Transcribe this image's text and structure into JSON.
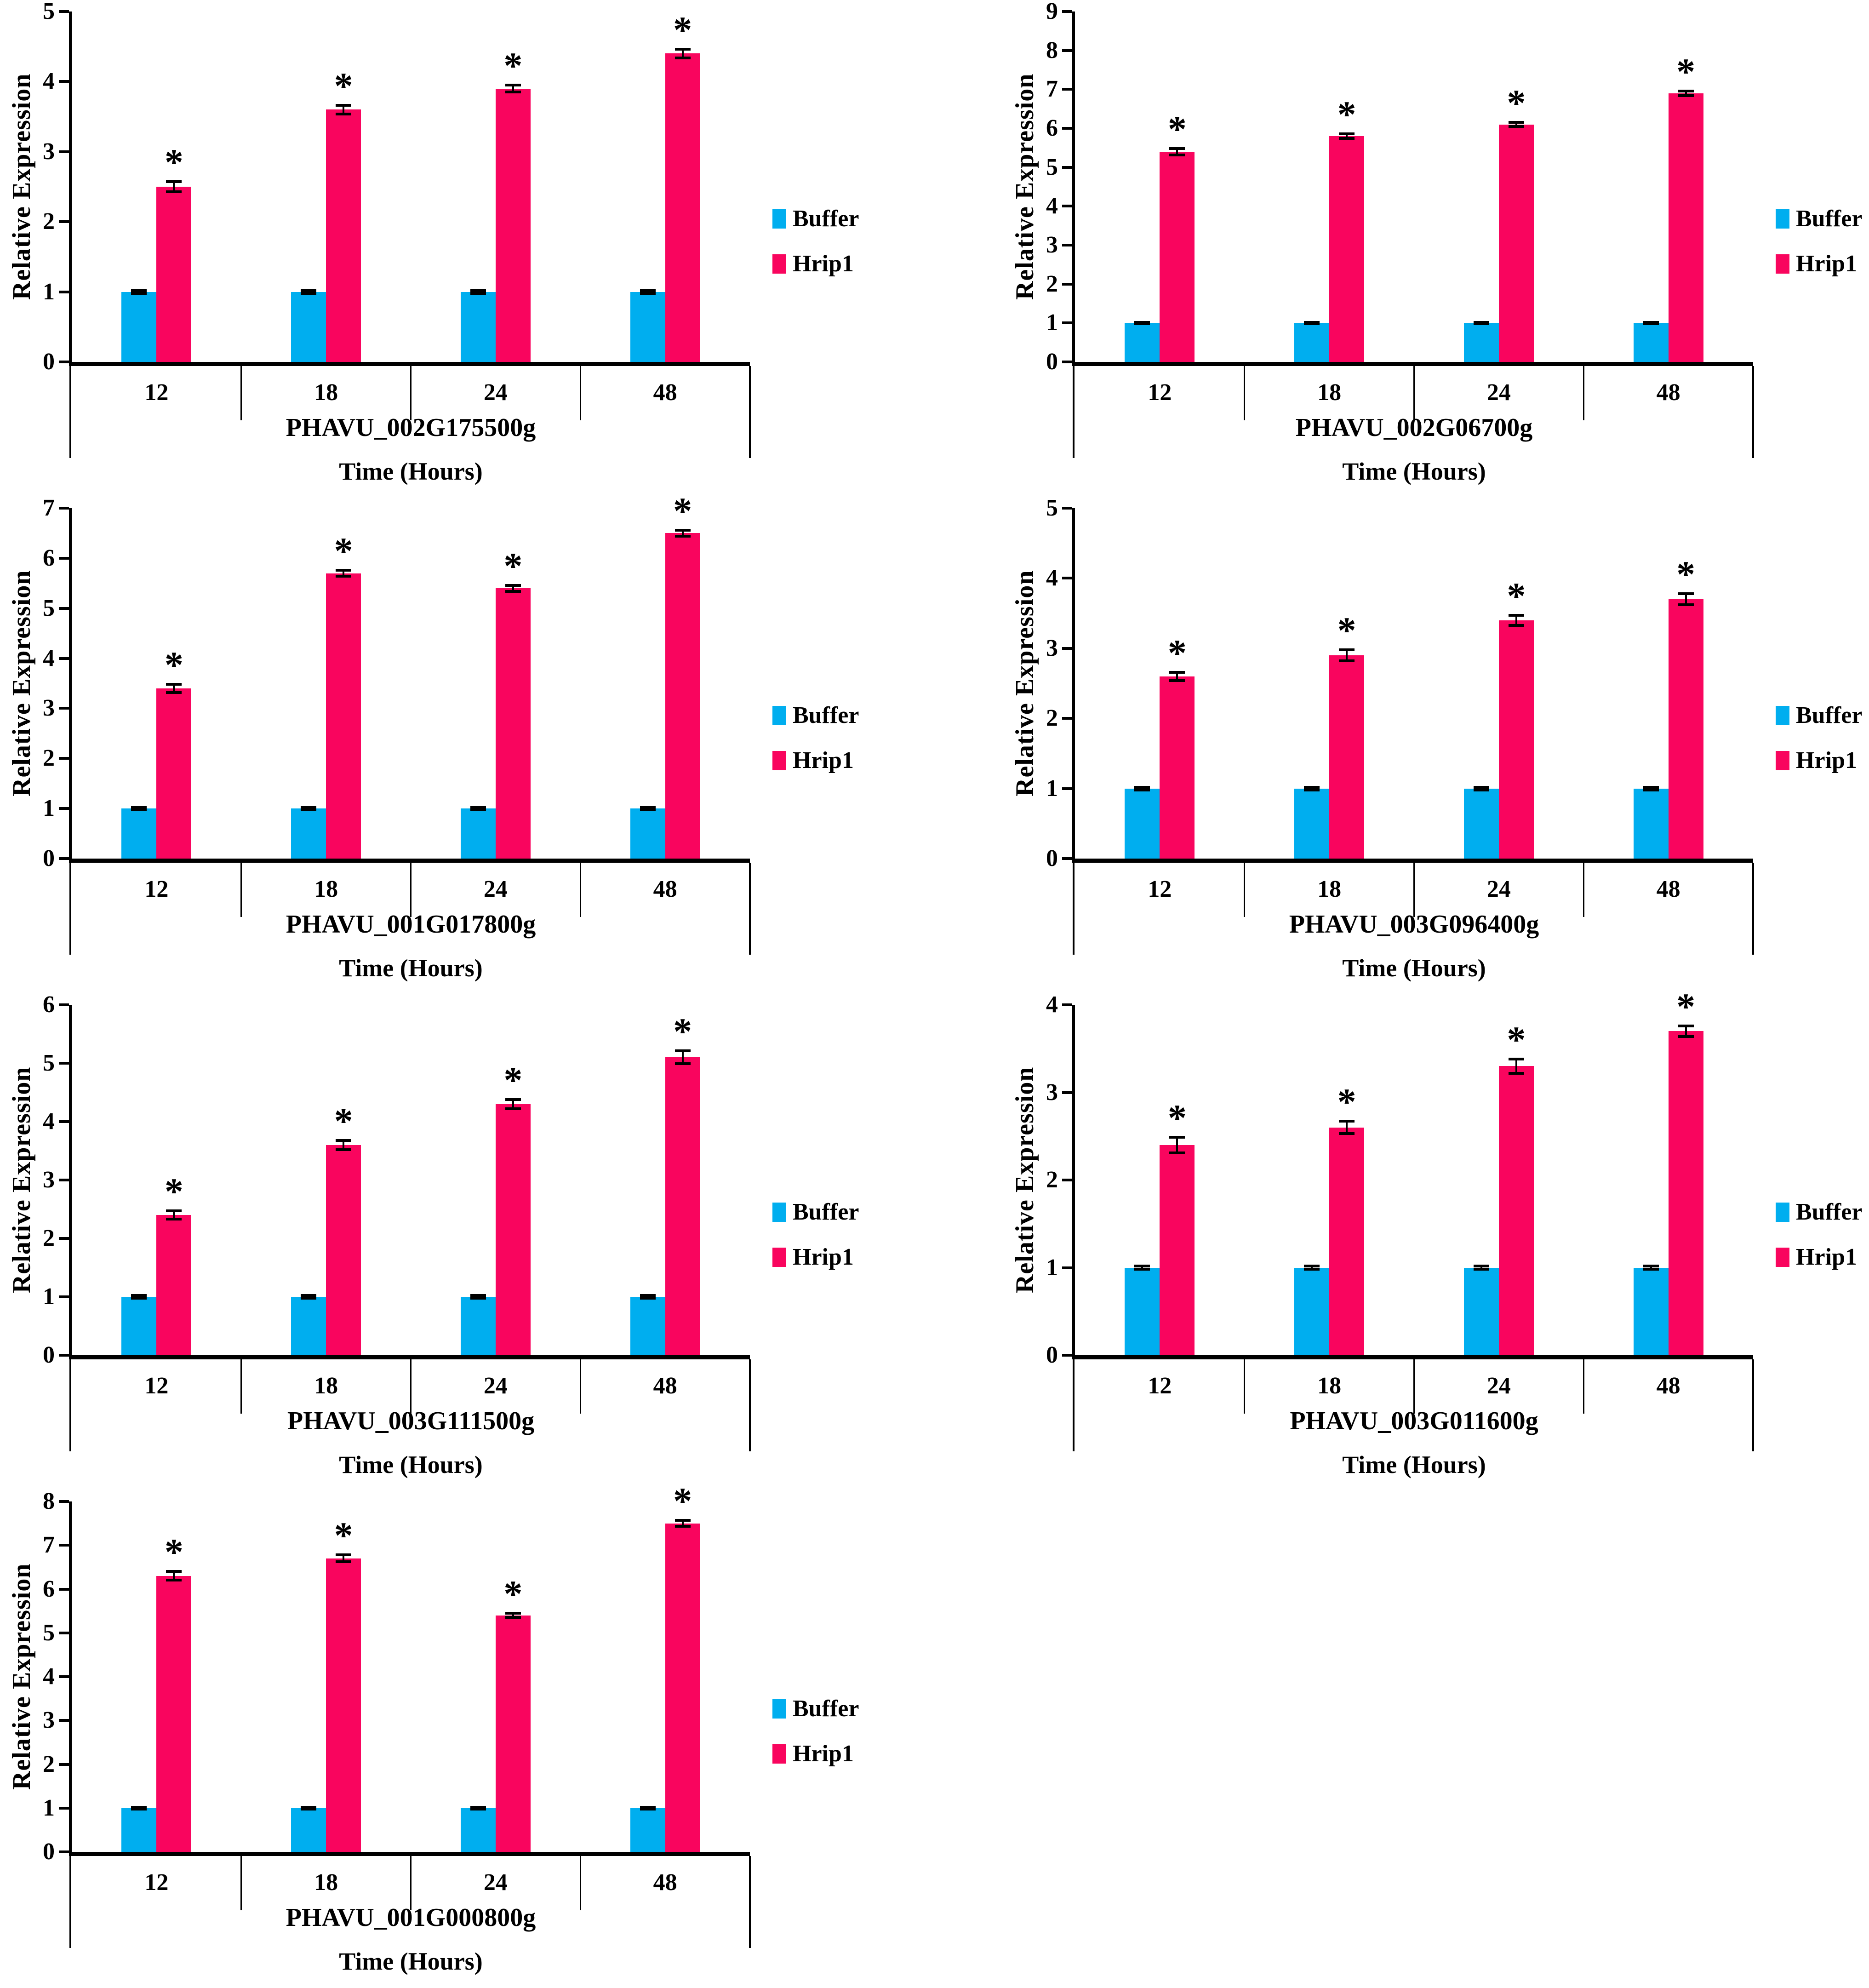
{
  "legend": {
    "buffer_label": "Buffer",
    "hrip1_label": "Hrip1"
  },
  "colors": {
    "buffer": "#00AEEF",
    "hrip1": "#F9055E",
    "error_bar": "#000000",
    "axis": "#000000",
    "background": "#FFFFFF"
  },
  "chart_data": [
    {
      "type": "bar",
      "gene": "PHAVU_002G175500g",
      "xlabel": "Time (Hours)",
      "ylabel": "Relative Expression",
      "categories": [
        "12",
        "18",
        "24",
        "48"
      ],
      "ymax": 5,
      "yticks": [
        0,
        1,
        2,
        3,
        4,
        5
      ],
      "series": [
        {
          "name": "Buffer",
          "values": [
            1,
            1,
            1,
            1
          ],
          "errors": [
            0.02,
            0.02,
            0.02,
            0.02
          ]
        },
        {
          "name": "Hrip1",
          "values": [
            2.5,
            3.6,
            3.9,
            4.4
          ],
          "errors": [
            0.07,
            0.06,
            0.05,
            0.06
          ]
        }
      ],
      "significance": [
        "*",
        "*",
        "*",
        "*"
      ],
      "legend_position": "right",
      "grid": false
    },
    {
      "type": "bar",
      "gene": "PHAVU_002G06700g",
      "xlabel": "Time (Hours)",
      "ylabel": "Relative Expression",
      "categories": [
        "12",
        "18",
        "24",
        "48"
      ],
      "ymax": 9,
      "yticks": [
        0,
        1,
        2,
        3,
        4,
        5,
        6,
        7,
        8,
        9
      ],
      "series": [
        {
          "name": "Buffer",
          "values": [
            1,
            1,
            1,
            1
          ],
          "errors": [
            0.02,
            0.02,
            0.02,
            0.02
          ]
        },
        {
          "name": "Hrip1",
          "values": [
            5.4,
            5.8,
            6.1,
            6.9
          ],
          "errors": [
            0.08,
            0.06,
            0.05,
            0.06
          ]
        }
      ],
      "significance": [
        "*",
        "*",
        "*",
        "*"
      ],
      "legend_position": "right",
      "grid": false
    },
    {
      "type": "bar",
      "gene": "PHAVU_001G017800g",
      "xlabel": "Time (Hours)",
      "ylabel": "Relative Expression",
      "categories": [
        "12",
        "18",
        "24",
        "48"
      ],
      "ymax": 7,
      "yticks": [
        0,
        1,
        2,
        3,
        4,
        5,
        6,
        7
      ],
      "series": [
        {
          "name": "Buffer",
          "values": [
            1,
            1,
            1,
            1
          ],
          "errors": [
            0.02,
            0.02,
            0.02,
            0.02
          ]
        },
        {
          "name": "Hrip1",
          "values": [
            3.4,
            5.7,
            5.4,
            6.5
          ],
          "errors": [
            0.08,
            0.06,
            0.06,
            0.06
          ]
        }
      ],
      "significance": [
        "*",
        "*",
        "*",
        "*"
      ],
      "legend_position": "right",
      "grid": false
    },
    {
      "type": "bar",
      "gene": "PHAVU_003G096400g",
      "xlabel": "Time (Hours)",
      "ylabel": "Relative Expression",
      "categories": [
        "12",
        "18",
        "24",
        "48"
      ],
      "ymax": 5,
      "yticks": [
        0,
        1,
        2,
        3,
        4,
        5
      ],
      "series": [
        {
          "name": "Buffer",
          "values": [
            1,
            1,
            1,
            1
          ],
          "errors": [
            0.02,
            0.02,
            0.02,
            0.02
          ]
        },
        {
          "name": "Hrip1",
          "values": [
            2.6,
            2.9,
            3.4,
            3.7
          ],
          "errors": [
            0.06,
            0.08,
            0.07,
            0.08
          ]
        }
      ],
      "significance": [
        "*",
        "*",
        "*",
        "*"
      ],
      "legend_position": "right",
      "grid": false
    },
    {
      "type": "bar",
      "gene": "PHAVU_003G111500g",
      "xlabel": "Time (Hours)",
      "ylabel": "Relative Expression",
      "categories": [
        "12",
        "18",
        "24",
        "48"
      ],
      "ymax": 6,
      "yticks": [
        0,
        1,
        2,
        3,
        4,
        5,
        6
      ],
      "series": [
        {
          "name": "Buffer",
          "values": [
            1,
            1,
            1,
            1
          ],
          "errors": [
            0.02,
            0.02,
            0.02,
            0.02
          ]
        },
        {
          "name": "Hrip1",
          "values": [
            2.4,
            3.6,
            4.3,
            5.1
          ],
          "errors": [
            0.07,
            0.08,
            0.08,
            0.11
          ]
        }
      ],
      "significance": [
        "*",
        "*",
        "*",
        "*"
      ],
      "legend_position": "right",
      "grid": false
    },
    {
      "type": "bar",
      "gene": "PHAVU_003G011600g",
      "xlabel": "Time (Hours)",
      "ylabel": "Relative Expression",
      "categories": [
        "12",
        "18",
        "24",
        "48"
      ],
      "ymax": 4,
      "yticks": [
        0,
        1,
        2,
        3,
        4
      ],
      "series": [
        {
          "name": "Buffer",
          "values": [
            1,
            1,
            1,
            1
          ],
          "errors": [
            0.02,
            0.02,
            0.02,
            0.02
          ]
        },
        {
          "name": "Hrip1",
          "values": [
            2.4,
            2.6,
            3.3,
            3.7
          ],
          "errors": [
            0.09,
            0.07,
            0.08,
            0.06
          ]
        }
      ],
      "significance": [
        "*",
        "*",
        "*",
        "*"
      ],
      "legend_position": "right",
      "grid": false
    },
    {
      "type": "bar",
      "gene": "PHAVU_001G000800g",
      "xlabel": "Time (Hours)",
      "ylabel": "Relative Expression",
      "categories": [
        "12",
        "18",
        "24",
        "48"
      ],
      "ymax": 8,
      "yticks": [
        0,
        1,
        2,
        3,
        4,
        5,
        6,
        7,
        8
      ],
      "series": [
        {
          "name": "Buffer",
          "values": [
            1,
            1,
            1,
            1
          ],
          "errors": [
            0.02,
            0.02,
            0.02,
            0.02
          ]
        },
        {
          "name": "Hrip1",
          "values": [
            6.3,
            6.7,
            5.4,
            7.5
          ],
          "errors": [
            0.1,
            0.08,
            0.05,
            0.07
          ]
        }
      ],
      "significance": [
        "*",
        "*",
        "*",
        "*"
      ],
      "legend_position": "right",
      "grid": false
    }
  ]
}
